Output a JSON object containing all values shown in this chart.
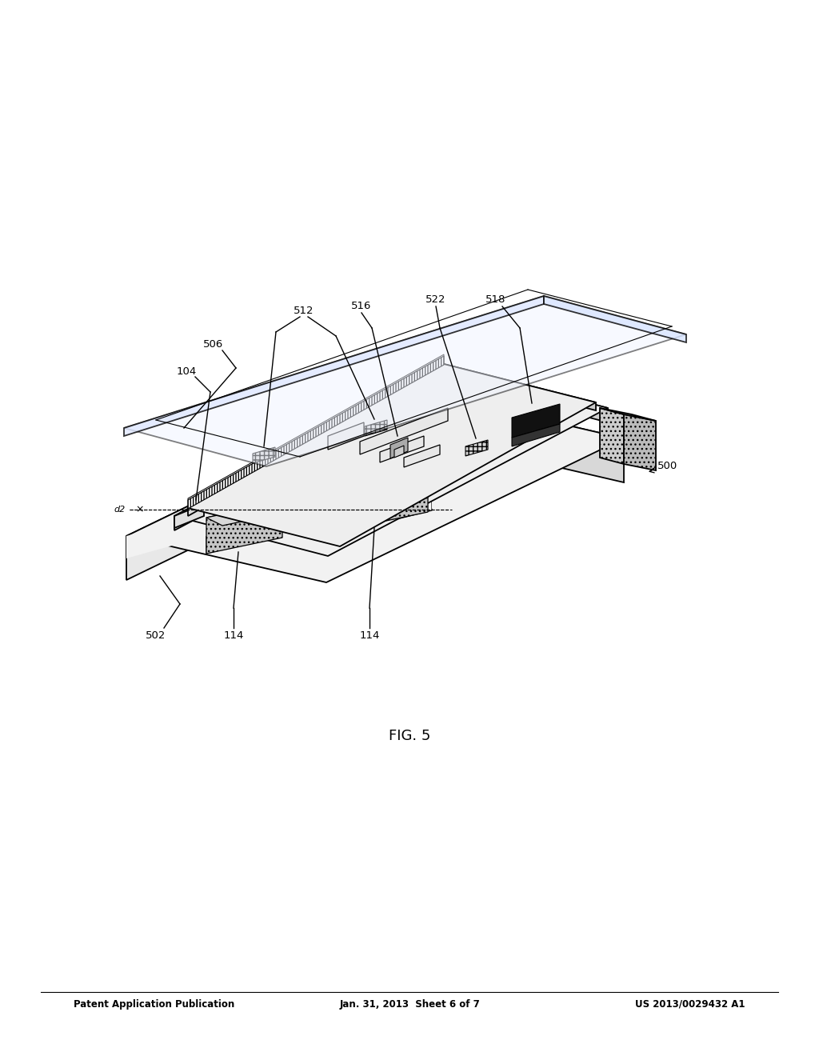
{
  "header_left": "Patent Application Publication",
  "header_center": "Jan. 31, 2013  Sheet 6 of 7",
  "header_right": "US 2013/0029432 A1",
  "fig_label": "FIG. 5",
  "bg_color": "#ffffff",
  "line_color": "#000000",
  "gray_light": "#f0f0f0",
  "gray_mid": "#d8d8d8",
  "gray_dark": "#aaaaaa",
  "gray_darker": "#888888",
  "black": "#1a1a1a",
  "hatched_gray": "#cccccc"
}
